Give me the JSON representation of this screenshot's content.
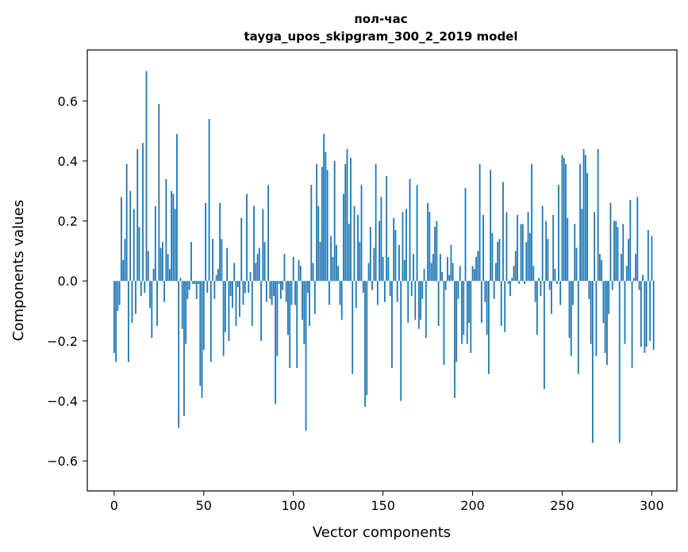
{
  "chart_data": {
    "type": "bar",
    "title_line1": "пол-час",
    "title_line2": "tayga_upos_skipgram_300_2_2019 model",
    "xlabel": "Vector components",
    "ylabel": "Components values",
    "xlim": [
      -15,
      314
    ],
    "ylim": [
      -0.7,
      0.77
    ],
    "xticks": [
      0,
      50,
      100,
      150,
      200,
      250,
      300
    ],
    "xtick_labels": [
      "0",
      "50",
      "100",
      "150",
      "200",
      "250",
      "300"
    ],
    "yticks": [
      -0.6,
      -0.4,
      -0.2,
      0.0,
      0.2,
      0.4,
      0.6
    ],
    "ytick_labels": [
      "−0.6",
      "−0.4",
      "−0.2",
      "0.0",
      "0.2",
      "0.4",
      "0.6"
    ],
    "color": "#1f77b4",
    "values": [
      -0.24,
      -0.27,
      -0.1,
      -0.08,
      0.28,
      0.07,
      0.14,
      0.39,
      -0.27,
      0.3,
      -0.14,
      0.24,
      -0.11,
      0.44,
      0.18,
      -0.05,
      0.46,
      -0.04,
      0.7,
      0.1,
      -0.09,
      -0.19,
      0.04,
      0.25,
      -0.15,
      0.59,
      0.11,
      0.13,
      -0.07,
      0.34,
      0.09,
      0.04,
      0.3,
      0.29,
      0.24,
      0.49,
      -0.49,
      0.01,
      -0.16,
      -0.45,
      -0.21,
      -0.06,
      -0.03,
      0.13,
      -0.01,
      -0.01,
      -0.06,
      -0.01,
      -0.35,
      -0.39,
      -0.23,
      0.26,
      -0.04,
      0.54,
      -0.27,
      0.14,
      -0.06,
      0.02,
      0.04,
      0.26,
      0.14,
      -0.25,
      -0.17,
      0.11,
      -0.2,
      -0.05,
      -0.09,
      0.06,
      -0.15,
      -0.02,
      -0.12,
      0.21,
      -0.08,
      -0.04,
      0.29,
      -0.04,
      0.03,
      -0.15,
      0.25,
      0.06,
      0.09,
      0.11,
      -0.2,
      0.24,
      0.13,
      -0.07,
      0.32,
      -0.06,
      -0.08,
      -0.05,
      -0.41,
      -0.25,
      -0.01,
      -0.06,
      -0.03,
      0.09,
      -0.07,
      -0.18,
      -0.29,
      -0.08,
      0.08,
      -0.08,
      -0.29,
      0.07,
      0.05,
      -0.13,
      -0.21,
      -0.5,
      -0.04,
      -0.15,
      0.32,
      0.06,
      -0.11,
      0.39,
      0.25,
      0.13,
      0.38,
      0.49,
      0.43,
      0.37,
      -0.08,
      0.15,
      0.08,
      0.4,
      0.12,
      0.05,
      -0.08,
      -0.13,
      0.29,
      0.39,
      0.44,
      0.19,
      0.41,
      -0.31,
      0.25,
      -0.09,
      0.22,
      0.13,
      0.32,
      -0.04,
      -0.42,
      -0.38,
      0.06,
      0.18,
      -0.03,
      0.11,
      0.39,
      -0.08,
      0.2,
      0.28,
      0.08,
      -0.07,
      0.35,
      0.08,
      -0.05,
      -0.29,
      0.21,
      0.17,
      -0.07,
      0.12,
      -0.4,
      0.23,
      0.07,
      0.24,
      -0.14,
      0.34,
      -0.05,
      0.09,
      -0.13,
      0.32,
      -0.16,
      -0.13,
      -0.06,
      0.04,
      -0.19,
      0.26,
      0.23,
      0.06,
      0.09,
      0.18,
      0.2,
      -0.15,
      0.09,
      0.03,
      -0.28,
      -0.03,
      0.08,
      0.02,
      0.12,
      0.06,
      -0.39,
      -0.27,
      -0.06,
      0.05,
      -0.21,
      -0.18,
      0.31,
      -0.21,
      -0.14,
      -0.24,
      0.05,
      0.04,
      0.08,
      0.1,
      0.39,
      -0.14,
      0.22,
      -0.07,
      -0.18,
      -0.31,
      0.37,
      0.16,
      -0.06,
      0.06,
      0.13,
      0.14,
      -0.15,
      0.33,
      -0.17,
      0.23,
      -0.01,
      -0.05,
      0.01,
      0.05,
      0.1,
      0.22,
      -0.01,
      0.19,
      0.19,
      -0.01,
      0.13,
      0.23,
      0.16,
      0.39,
      0.05,
      -0.07,
      -0.18,
      0.01,
      -0.05,
      0.25,
      -0.36,
      0.2,
      0.14,
      -0.03,
      -0.11,
      0.22,
      0.04,
      -0.01,
      0.32,
      -0.08,
      0.42,
      0.41,
      0.39,
      0.21,
      -0.19,
      -0.25,
      -0.08,
      0.19,
      0.11,
      -0.31,
      0.39,
      0.24,
      0.44,
      0.42,
      0.36,
      -0.06,
      -0.21,
      -0.54,
      0.23,
      -0.25,
      0.44,
      0.09,
      0.07,
      -0.14,
      -0.24,
      -0.28,
      -0.11,
      0.26,
      -0.03,
      0.2,
      0.2,
      0.18,
      -0.54,
      0.09,
      0.19,
      -0.21,
      0.05,
      0.14,
      0.27,
      -0.29,
      0.01,
      0.09,
      0.28,
      -0.03,
      -0.22,
      0.02,
      -0.24,
      -0.22,
      0.17,
      -0.2,
      0.15,
      -0.23
    ]
  }
}
